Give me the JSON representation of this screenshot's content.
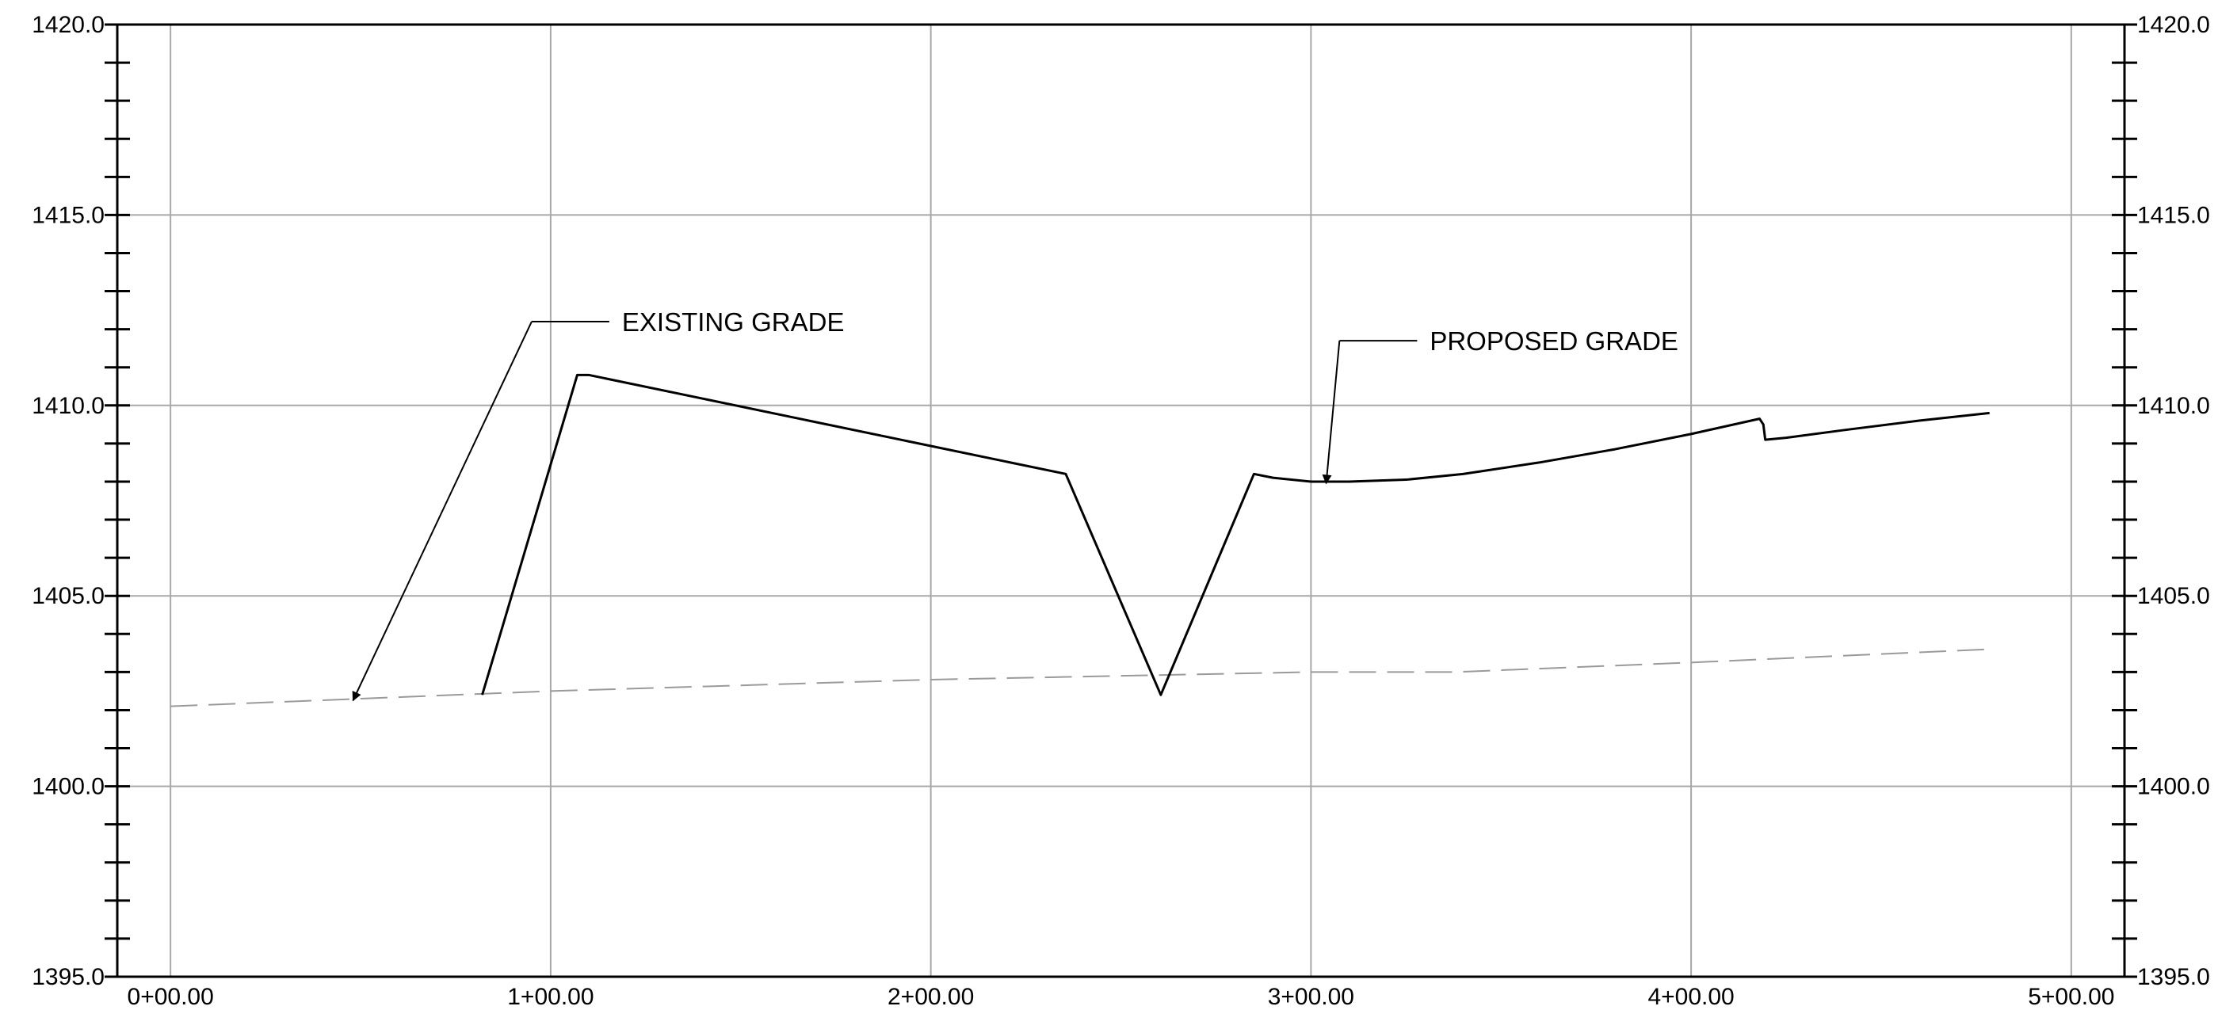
{
  "chart_data": {
    "type": "line",
    "title": "",
    "xlabel": "",
    "ylabel": "",
    "xlim": [
      -14,
      514
    ],
    "ylim": [
      1395,
      1420
    ],
    "grid": true,
    "x_ticks": [
      {
        "value": 0,
        "label": "0+00.00"
      },
      {
        "value": 100,
        "label": "1+00.00"
      },
      {
        "value": 200,
        "label": "2+00.00"
      },
      {
        "value": 300,
        "label": "3+00.00"
      },
      {
        "value": 400,
        "label": "4+00.00"
      },
      {
        "value": 500,
        "label": "5+00.00"
      }
    ],
    "y_ticks": [
      {
        "value": 1395,
        "label": "1395.0"
      },
      {
        "value": 1400,
        "label": "1400.0"
      },
      {
        "value": 1405,
        "label": "1405.0"
      },
      {
        "value": 1410,
        "label": "1410.0"
      },
      {
        "value": 1415,
        "label": "1415.0"
      },
      {
        "value": 1420,
        "label": "1420.0"
      }
    ],
    "minor_y_step": 1,
    "series": [
      {
        "name": "EXISTING GRADE",
        "style": "dashed",
        "color": "#9a9a9a",
        "x": [
          0,
          100,
          200,
          300,
          338,
          400,
          478.5
        ],
        "y": [
          1402.1,
          1402.5,
          1402.8,
          1403.0,
          1403.0,
          1403.25,
          1403.6
        ]
      },
      {
        "name": "PROPOSED GRADE",
        "style": "solid",
        "color": "#000000",
        "x": [
          82,
          107,
          110,
          235.5,
          260.5,
          285,
          290,
          300,
          310,
          325,
          340,
          360,
          380,
          400,
          418,
          419,
          419.5,
          425,
          440,
          460,
          478.5
        ],
        "y": [
          1402.4,
          1410.8,
          1410.8,
          1408.2,
          1402.4,
          1408.2,
          1408.1,
          1408.0,
          1408.0,
          1408.05,
          1408.2,
          1408.5,
          1408.85,
          1409.25,
          1409.65,
          1409.5,
          1409.1,
          1409.15,
          1409.35,
          1409.6,
          1409.8
        ]
      }
    ],
    "annotations": [
      {
        "text": "EXISTING GRADE",
        "target_x": 48,
        "target_y": 1402.25,
        "elbow_x": 95,
        "elbow_y": 1412.2
      },
      {
        "text": "PROPOSED GRADE",
        "target_x": 304,
        "target_y": 1407.95,
        "elbow_x": 307.5,
        "elbow_y": 1411.7
      }
    ],
    "colors": {
      "grid": "#a8a8a8",
      "frame": "#000000",
      "existing": "#9a9a9a",
      "proposed": "#000000"
    }
  }
}
